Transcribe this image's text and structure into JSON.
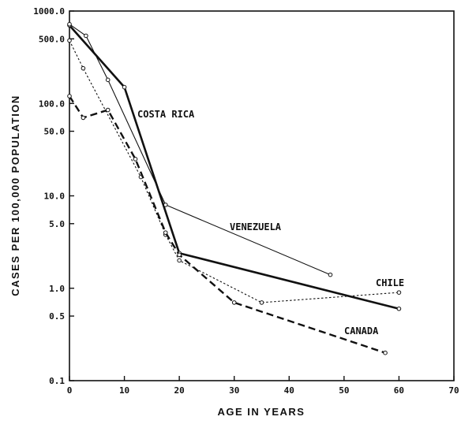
{
  "chart_data": {
    "type": "line",
    "xlabel": "AGE IN YEARS",
    "ylabel": "CASES PER 100,000 POPULATION",
    "yscale": "log",
    "xlim": [
      0,
      70
    ],
    "ylim": [
      0.1,
      1000
    ],
    "x_ticks": [
      0,
      10,
      20,
      30,
      40,
      50,
      60,
      70
    ],
    "x_tick_labels": [
      "0",
      "10",
      "20",
      "30",
      "40",
      "50",
      "60",
      "70"
    ],
    "y_ticks": [
      0.1,
      0.5,
      1,
      5,
      10,
      50,
      100,
      500,
      1000
    ],
    "y_tick_labels": [
      "0.1",
      "0.5",
      "1.0",
      "5.0",
      "10.0",
      "50.0",
      "100.0",
      "500.0",
      "1000.0"
    ],
    "grid": false,
    "series": [
      {
        "name": "COSTA RICA",
        "style": "thick-solid",
        "x": [
          0,
          10,
          20,
          60
        ],
        "y": [
          700,
          150,
          2.4,
          0.6
        ]
      },
      {
        "name": "VENEZUELA",
        "style": "thin-solid",
        "x": [
          0,
          3,
          7,
          17.5,
          47.5
        ],
        "y": [
          720,
          540,
          180,
          8,
          1.4
        ]
      },
      {
        "name": "CHILE",
        "style": "dotted",
        "x": [
          0,
          2.5,
          13,
          17.5,
          20,
          35,
          60
        ],
        "y": [
          480,
          240,
          16,
          3.8,
          2,
          0.7,
          0.9
        ]
      },
      {
        "name": "CANADA",
        "style": "thick-dashed",
        "x": [
          0,
          2.5,
          7,
          12,
          17.5,
          20,
          30,
          57.5
        ],
        "y": [
          120,
          70,
          85,
          25,
          4,
          2.3,
          0.7,
          0.2
        ]
      }
    ]
  },
  "labels": {
    "costa_rica": "COSTA RICA",
    "venezuela": "VENEZUELA",
    "chile": "CHILE",
    "canada": "CANADA"
  }
}
